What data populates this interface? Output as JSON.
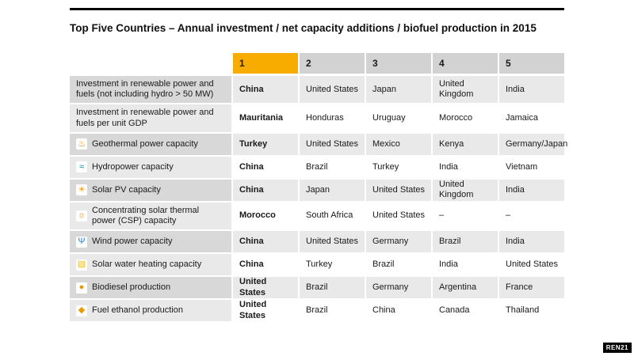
{
  "page": {
    "title": "Top Five Countries – Annual investment / net capacity additions / biofuel production in 2015",
    "brand_badge": "REN21"
  },
  "colors": {
    "rank1_header": "#f8ac00",
    "header_gray": "#d2d2d2",
    "label_gray_dark": "#d8d8d8",
    "row_gray": "#e9e9e9",
    "rule_black": "#000000"
  },
  "icons": {
    "geothermal": {
      "glyph": "♨",
      "color": "#ef8200"
    },
    "hydropower": {
      "glyph": "≈",
      "color": "#0081b4"
    },
    "solar_pv": {
      "glyph": "☀",
      "color": "#f5a300"
    },
    "csp": {
      "glyph": "☼",
      "color": "#ef7d00"
    },
    "wind": {
      "glyph": "Ψ",
      "color": "#2a7fc1"
    },
    "solar_water": {
      "glyph": "▤",
      "color": "#f5b800"
    },
    "biodiesel": {
      "glyph": "●",
      "color": "#e89b00"
    },
    "fuel_ethanol": {
      "glyph": "◆",
      "color": "#e89b00"
    }
  },
  "chart_data": {
    "type": "table",
    "title": "Top Five Countries – Annual investment / net capacity additions / biofuel production in 2015",
    "columns": [
      "",
      "1",
      "2",
      "3",
      "4",
      "5"
    ],
    "rows": [
      [
        "Investment in renewable power and fuels (not including hydro > 50 MW)",
        "China",
        "United States",
        "Japan",
        "United Kingdom",
        "India"
      ],
      [
        "Investment in renewable power and fuels per unit GDP",
        "Mauritania",
        "Honduras",
        "Uruguay",
        "Morocco",
        "Jamaica"
      ],
      [
        "Geothermal power capacity",
        "Turkey",
        "United States",
        "Mexico",
        "Kenya",
        "Germany/Japan"
      ],
      [
        "Hydropower capacity",
        "China",
        "Brazil",
        "Turkey",
        "India",
        "Vietnam"
      ],
      [
        "Solar PV capacity",
        "China",
        "Japan",
        "United States",
        "United Kingdom",
        "India"
      ],
      [
        "Concentrating solar thermal power (CSP) capacity",
        "Morocco",
        "South Africa",
        "United States",
        "–",
        "–"
      ],
      [
        "Wind power capacity",
        "China",
        "United States",
        "Germany",
        "Brazil",
        "India"
      ],
      [
        "Solar water heating capacity",
        "China",
        "Turkey",
        "Brazil",
        "India",
        "United States"
      ],
      [
        "Biodiesel production",
        "United States",
        "Brazil",
        "Germany",
        "Argentina",
        "France"
      ],
      [
        "Fuel ethanol production",
        "United States",
        "Brazil",
        "China",
        "Canada",
        "Thailand"
      ]
    ]
  }
}
